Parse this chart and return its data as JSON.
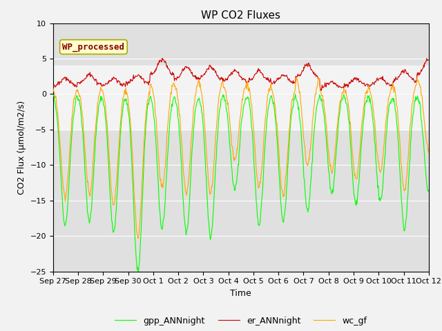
{
  "title": "WP CO2 Fluxes",
  "xlabel": "Time",
  "ylabel": "CO2 Flux (μmol/m2/s)",
  "ylim": [
    -25,
    10
  ],
  "yticks": [
    -25,
    -20,
    -15,
    -10,
    -5,
    0,
    5,
    10
  ],
  "xtick_labels": [
    "Sep 27",
    "Sep 28",
    "Sep 29",
    "Sep 30",
    "Oct 1",
    "Oct 2",
    "Oct 3",
    "Oct 4",
    "Oct 5",
    "Oct 6",
    "Oct 7",
    "Oct 8",
    "Oct 9",
    "Oct 10",
    "Oct 11",
    "Oct 12"
  ],
  "line_colors": {
    "gpp": "#00FF00",
    "er": "#CC0000",
    "wc": "#FFA500"
  },
  "legend_labels": [
    "gpp_ANNnight",
    "er_ANNnight",
    "wc_gf"
  ],
  "annotation_text": "WP_processed",
  "annotation_text_color": "#8B0000",
  "annotation_bg_color": "#FFFFCC",
  "n_days": 15.5,
  "points_per_day": 48,
  "title_fontsize": 11,
  "axis_label_fontsize": 9,
  "tick_fontsize": 8,
  "day_amplitudes_gpp": [
    -18.5,
    -18.0,
    -19.5,
    -25.0,
    -19.0,
    -19.5,
    -20.0,
    -13.5,
    -18.5,
    -18.0,
    -16.5,
    -14.0,
    -15.5,
    -15.0,
    -19.0,
    -14.0
  ],
  "day_amplitudes_er": [
    2.0,
    2.5,
    2.0,
    2.5,
    4.5,
    3.5,
    3.5,
    3.0,
    3.0,
    2.5,
    3.8,
    1.5,
    2.0,
    2.0,
    3.0,
    4.5
  ],
  "day_amplitudes_wc": [
    2.0,
    2.0,
    1.8,
    2.0,
    4.0,
    3.5,
    4.0,
    3.0,
    3.5,
    1.8,
    5.0,
    1.5,
    2.0,
    2.5,
    3.5,
    5.0
  ]
}
